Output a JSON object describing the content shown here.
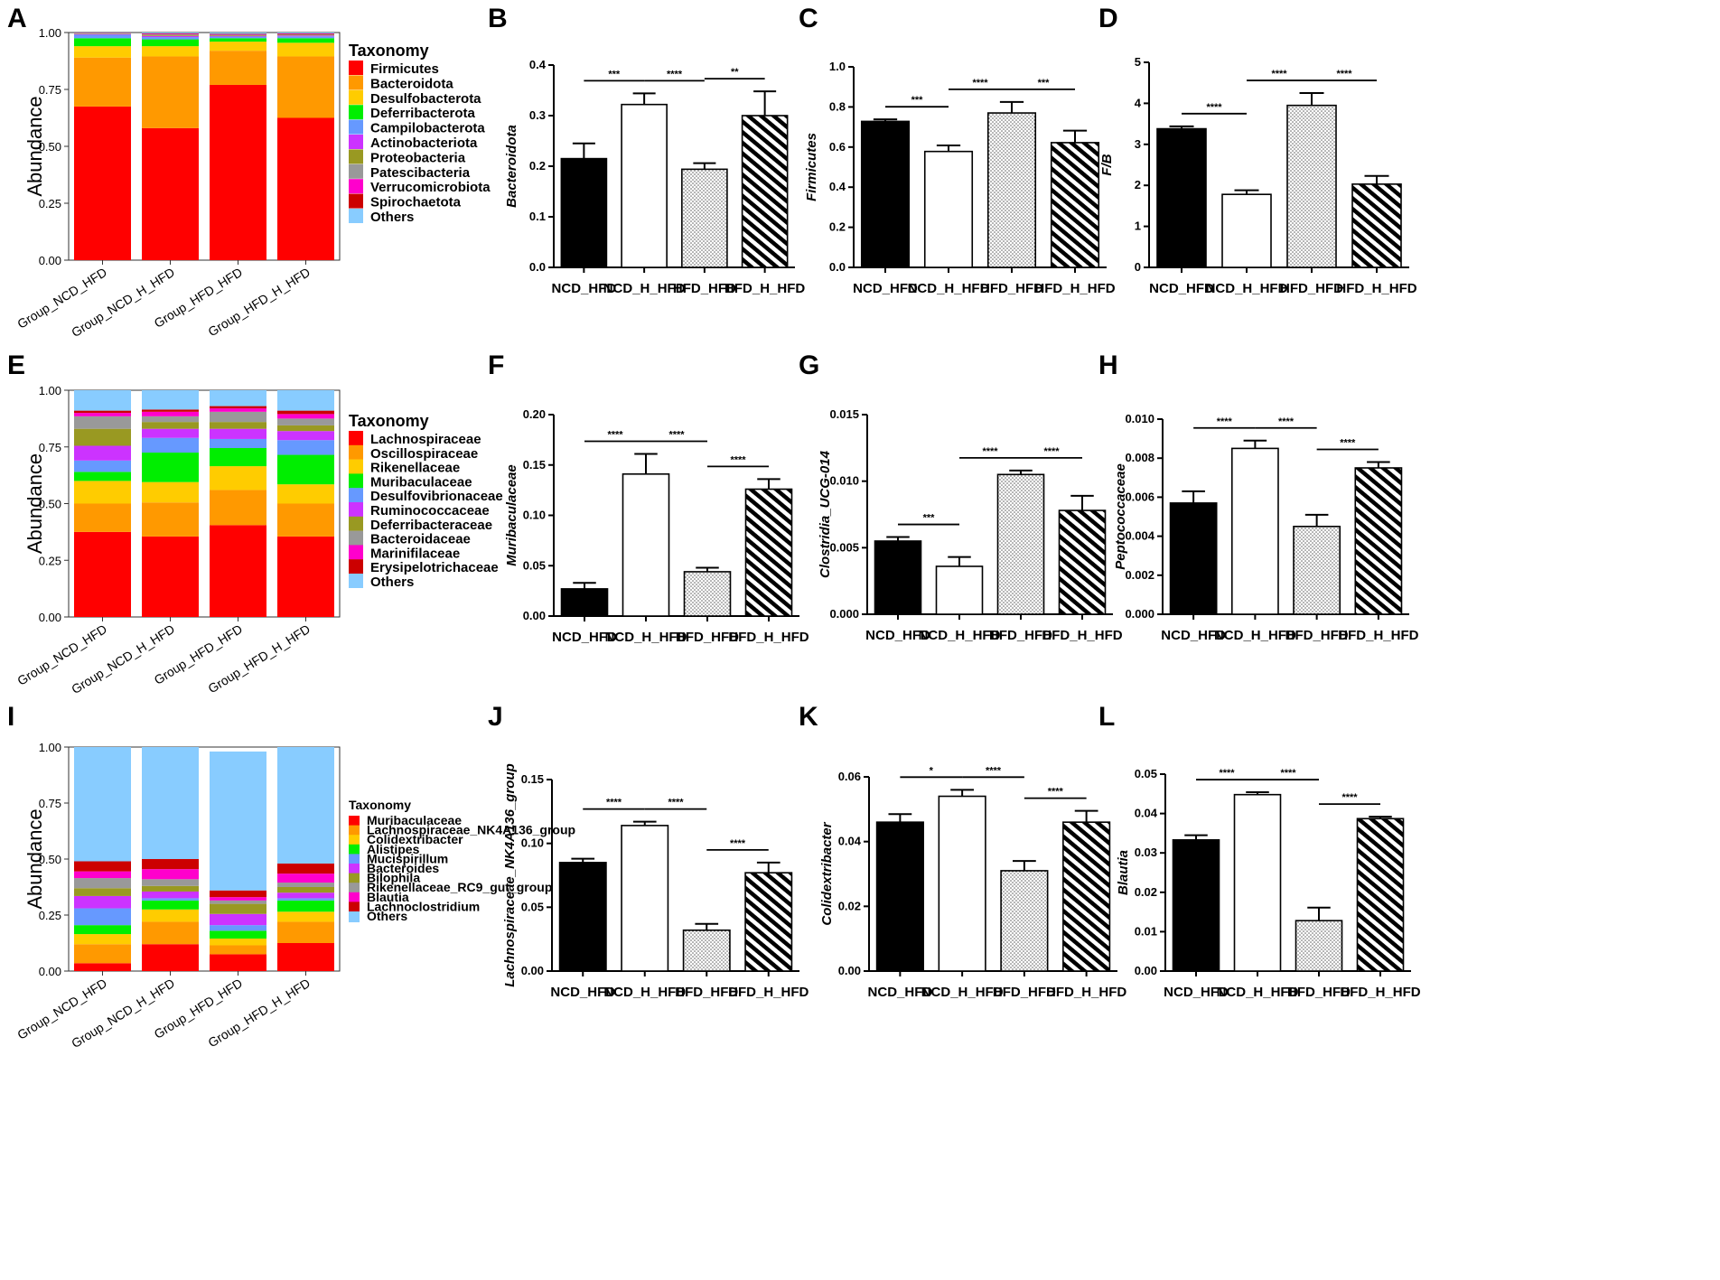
{
  "chart_data": [
    {
      "panel": "A",
      "type": "stacked_bar",
      "ylabel": "Abundance",
      "ylim": [
        0,
        1
      ],
      "yticks": [
        "0.00",
        "0.25",
        "0.50",
        "0.75",
        "1.00"
      ],
      "categories": [
        "Group_NCD_HFD",
        "Group_NCD_H_HFD",
        "Group_HFD_HFD",
        "Group_HFD_H_HFD"
      ],
      "legend_title": "Taxonomy",
      "series": [
        {
          "name": "Firmicutes",
          "color": "#ff0000",
          "values": [
            0.675,
            0.58,
            0.77,
            0.625
          ]
        },
        {
          "name": "Bacteroidota",
          "color": "#ff9900",
          "values": [
            0.215,
            0.315,
            0.15,
            0.27
          ]
        },
        {
          "name": "Desulfobacterota",
          "color": "#ffcc00",
          "values": [
            0.05,
            0.045,
            0.04,
            0.06
          ]
        },
        {
          "name": "Deferribacterota",
          "color": "#00ee00",
          "values": [
            0.035,
            0.03,
            0.015,
            0.02
          ]
        },
        {
          "name": "Campilobacterota",
          "color": "#6699ff",
          "values": [
            0.015,
            0.01,
            0.007,
            0.008
          ]
        },
        {
          "name": "Actinobacteriota",
          "color": "#cc33ff",
          "values": [
            0.003,
            0.005,
            0.003,
            0.004
          ]
        },
        {
          "name": "Proteobacteria",
          "color": "#999922",
          "values": [
            0.002,
            0.004,
            0.003,
            0.003
          ]
        },
        {
          "name": "Patescibacteria",
          "color": "#999999",
          "values": [
            0.002,
            0.003,
            0.002,
            0.002
          ]
        },
        {
          "name": "Verrucomicrobiota",
          "color": "#ff00cc",
          "values": [
            0.001,
            0.002,
            0.002,
            0.002
          ]
        },
        {
          "name": "Spirochaetota",
          "color": "#cc0000",
          "values": [
            0.001,
            0.002,
            0.002,
            0.002
          ]
        },
        {
          "name": "Others",
          "color": "#88ccff",
          "values": [
            0.001,
            0.004,
            0.006,
            0.004
          ]
        }
      ]
    },
    {
      "panel": "B",
      "type": "bar",
      "ylabel": "Bacteroidota",
      "ylim": [
        0,
        0.4
      ],
      "yticks": [
        "0.0",
        "0.1",
        "0.2",
        "0.3",
        "0.4"
      ],
      "categories": [
        "NCD_HFD",
        "NCD_H_HFD",
        "HFD_HFD",
        "HFD_H_HFD"
      ],
      "values": [
        0.215,
        0.322,
        0.194,
        0.3
      ],
      "errors": [
        0.03,
        0.022,
        0.012,
        0.048
      ],
      "significance": [
        {
          "from": 0,
          "to": 1,
          "label": "***"
        },
        {
          "from": 1,
          "to": 2,
          "label": "****"
        },
        {
          "from": 2,
          "to": 3,
          "label": "**"
        }
      ]
    },
    {
      "panel": "C",
      "type": "bar",
      "ylabel": "Firmicutes",
      "ylim": [
        0,
        1.0
      ],
      "yticks": [
        "0.0",
        "0.2",
        "0.4",
        "0.6",
        "0.8",
        "1.0"
      ],
      "categories": [
        "NCD_HFD",
        "NCD_H_HFD",
        "HFD_HFD",
        "HFD_H_HFD"
      ],
      "values": [
        0.728,
        0.578,
        0.77,
        0.622
      ],
      "errors": [
        0.01,
        0.03,
        0.055,
        0.06
      ],
      "significance": [
        {
          "from": 0,
          "to": 1,
          "label": "***"
        },
        {
          "from": 1,
          "to": 2,
          "label": "****"
        },
        {
          "from": 2,
          "to": 3,
          "label": "***"
        }
      ]
    },
    {
      "panel": "D",
      "type": "bar",
      "ylabel": "F/B",
      "ylim": [
        0,
        5
      ],
      "yticks": [
        "0",
        "1",
        "2",
        "3",
        "4",
        "5"
      ],
      "categories": [
        "NCD_HFD",
        "NCD_H_HFD",
        "HFD_HFD",
        "HFD_H_HFD"
      ],
      "values": [
        3.38,
        1.78,
        3.95,
        2.03
      ],
      "errors": [
        0.06,
        0.1,
        0.3,
        0.2
      ],
      "significance": [
        {
          "from": 0,
          "to": 1,
          "label": "****"
        },
        {
          "from": 1,
          "to": 2,
          "label": "****"
        },
        {
          "from": 2,
          "to": 3,
          "label": "****"
        }
      ]
    },
    {
      "panel": "E",
      "type": "stacked_bar",
      "ylabel": "Abundance",
      "ylim": [
        0,
        1
      ],
      "yticks": [
        "0.00",
        "0.25",
        "0.50",
        "0.75",
        "1.00"
      ],
      "categories": [
        "Group_NCD_HFD",
        "Group_NCD_H_HFD",
        "Group_HFD_HFD",
        "Group_HFD_H_HFD"
      ],
      "legend_title": "Taxonomy",
      "series": [
        {
          "name": "Lachnospiraceae",
          "color": "#ff0000",
          "values": [
            0.375,
            0.355,
            0.405,
            0.355
          ]
        },
        {
          "name": "Oscillospiraceae",
          "color": "#ff9900",
          "values": [
            0.125,
            0.15,
            0.155,
            0.145
          ]
        },
        {
          "name": "Rikenellaceae",
          "color": "#ffcc00",
          "values": [
            0.1,
            0.09,
            0.105,
            0.085
          ]
        },
        {
          "name": "Muribaculaceae",
          "color": "#00ee00",
          "values": [
            0.04,
            0.13,
            0.08,
            0.13
          ]
        },
        {
          "name": "Desulfovibrionaceae",
          "color": "#6699ff",
          "values": [
            0.05,
            0.065,
            0.04,
            0.065
          ]
        },
        {
          "name": "Ruminococcaceae",
          "color": "#cc33ff",
          "values": [
            0.065,
            0.04,
            0.045,
            0.04
          ]
        },
        {
          "name": "Deferribacteraceae",
          "color": "#999922",
          "values": [
            0.075,
            0.03,
            0.03,
            0.025
          ]
        },
        {
          "name": "Bacteroidaceae",
          "color": "#999999",
          "values": [
            0.055,
            0.025,
            0.045,
            0.03
          ]
        },
        {
          "name": "Marinifilaceae",
          "color": "#ff00cc",
          "values": [
            0.015,
            0.02,
            0.015,
            0.02
          ]
        },
        {
          "name": "Erysipelotrichaceae",
          "color": "#cc0000",
          "values": [
            0.01,
            0.01,
            0.01,
            0.015
          ]
        },
        {
          "name": "Others",
          "color": "#88ccff",
          "values": [
            0.09,
            0.085,
            0.07,
            0.09
          ]
        }
      ]
    },
    {
      "panel": "F",
      "type": "bar",
      "ylabel": "Muribaculaceae",
      "ylim": [
        0,
        0.2
      ],
      "yticks": [
        "0.00",
        "0.05",
        "0.10",
        "0.15",
        "0.20"
      ],
      "categories": [
        "NCD_HFD",
        "NCD_H_HFD",
        "HFD_HFD",
        "HFD_H_HFD"
      ],
      "values": [
        0.027,
        0.141,
        0.044,
        0.126
      ],
      "errors": [
        0.006,
        0.02,
        0.004,
        0.01
      ],
      "significance": [
        {
          "from": 0,
          "to": 1,
          "label": "****"
        },
        {
          "from": 1,
          "to": 2,
          "label": "****"
        },
        {
          "from": 2,
          "to": 3,
          "label": "****"
        }
      ]
    },
    {
      "panel": "G",
      "type": "bar",
      "ylabel": "Clostridia_UCG-014",
      "ylim": [
        0,
        0.015
      ],
      "yticks": [
        "0.000",
        "0.005",
        "0.010",
        "0.015"
      ],
      "categories": [
        "NCD_HFD",
        "NCD_H_HFD",
        "HFD_HFD",
        "HFD_H_HFD"
      ],
      "values": [
        0.0055,
        0.0036,
        0.0105,
        0.0078
      ],
      "errors": [
        0.0003,
        0.0007,
        0.0003,
        0.0011
      ],
      "significance": [
        {
          "from": 0,
          "to": 1,
          "label": "***"
        },
        {
          "from": 2,
          "to": 3,
          "label": "****"
        },
        {
          "from": 1,
          "to": 2,
          "label": "****"
        }
      ]
    },
    {
      "panel": "H",
      "type": "bar",
      "ylabel": "Peptococcaceae",
      "ylim": [
        0,
        0.01
      ],
      "yticks": [
        "0.000",
        "0.002",
        "0.004",
        "0.006",
        "0.008",
        "0.010"
      ],
      "categories": [
        "NCD_HFD",
        "NCD_H_HFD",
        "HFD_HFD",
        "HFD_H_HFD"
      ],
      "values": [
        0.0057,
        0.0085,
        0.0045,
        0.0075
      ],
      "errors": [
        0.0006,
        0.0004,
        0.0006,
        0.0003
      ],
      "significance": [
        {
          "from": 0,
          "to": 1,
          "label": "****"
        },
        {
          "from": 1,
          "to": 2,
          "label": "****"
        },
        {
          "from": 2,
          "to": 3,
          "label": "****"
        }
      ]
    },
    {
      "panel": "I",
      "type": "stacked_bar",
      "ylabel": "Abundance",
      "ylim": [
        0,
        1
      ],
      "yticks": [
        "0.00",
        "0.25",
        "0.50",
        "0.75",
        "1.00"
      ],
      "categories": [
        "Group_NCD_HFD",
        "Group_NCD_H_HFD",
        "Group_HFD_HFD",
        "Group_HFD_H_HFD"
      ],
      "legend_title": "Taxonomy",
      "series": [
        {
          "name": "Muribaculaceae",
          "color": "#ff0000",
          "values": [
            0.035,
            0.12,
            0.075,
            0.125
          ]
        },
        {
          "name": "Lachnospiraceae_NK4A136_group",
          "color": "#ff9900",
          "values": [
            0.085,
            0.1,
            0.04,
            0.095
          ]
        },
        {
          "name": "Colidextribacter",
          "color": "#ffcc00",
          "values": [
            0.045,
            0.055,
            0.03,
            0.045
          ]
        },
        {
          "name": "Alistipes",
          "color": "#00ee00",
          "values": [
            0.04,
            0.04,
            0.035,
            0.05
          ]
        },
        {
          "name": "Mucispirillum",
          "color": "#6699ff",
          "values": [
            0.075,
            0.01,
            0.025,
            0.01
          ]
        },
        {
          "name": "Bacteroides",
          "color": "#cc33ff",
          "values": [
            0.055,
            0.03,
            0.05,
            0.025
          ]
        },
        {
          "name": "Bilophila",
          "color": "#999922",
          "values": [
            0.035,
            0.025,
            0.045,
            0.025
          ]
        },
        {
          "name": "Rikenellaceae_RC9_gut_group",
          "color": "#999999",
          "values": [
            0.045,
            0.03,
            0.015,
            0.02
          ]
        },
        {
          "name": "Blautia",
          "color": "#ff00cc",
          "values": [
            0.03,
            0.045,
            0.015,
            0.04
          ]
        },
        {
          "name": "Lachnoclostridium",
          "color": "#cc0000",
          "values": [
            0.045,
            0.045,
            0.03,
            0.045
          ]
        },
        {
          "name": "Others",
          "color": "#88ccff",
          "values": [
            0.51,
            0.5,
            0.62,
            0.52
          ]
        }
      ]
    },
    {
      "panel": "J",
      "type": "bar",
      "ylabel": "Lachnospiraceae_NK4A136_group",
      "ylim": [
        0,
        0.15
      ],
      "yticks": [
        "0.00",
        "0.05",
        "0.10",
        "0.15"
      ],
      "categories": [
        "NCD_HFD",
        "NCD_H_HFD",
        "HFD_HFD",
        "HFD_H_HFD"
      ],
      "values": [
        0.085,
        0.114,
        0.032,
        0.077
      ],
      "errors": [
        0.003,
        0.003,
        0.005,
        0.008
      ],
      "significance": [
        {
          "from": 0,
          "to": 1,
          "label": "****"
        },
        {
          "from": 1,
          "to": 2,
          "label": "****"
        },
        {
          "from": 2,
          "to": 3,
          "label": "****"
        }
      ]
    },
    {
      "panel": "K",
      "type": "bar",
      "ylabel": "Colidextribacter",
      "ylim": [
        0,
        0.06
      ],
      "yticks": [
        "0.00",
        "0.02",
        "0.04",
        "0.06"
      ],
      "categories": [
        "NCD_HFD",
        "NCD_H_HFD",
        "HFD_HFD",
        "HFD_H_HFD"
      ],
      "values": [
        0.046,
        0.054,
        0.031,
        0.046
      ],
      "errors": [
        0.0025,
        0.002,
        0.003,
        0.0035
      ],
      "significance": [
        {
          "from": 0,
          "to": 1,
          "label": "*"
        },
        {
          "from": 1,
          "to": 2,
          "label": "****"
        },
        {
          "from": 2,
          "to": 3,
          "label": "****"
        }
      ]
    },
    {
      "panel": "L",
      "type": "bar",
      "ylabel": "Blautia",
      "ylim": [
        0,
        0.05
      ],
      "yticks": [
        "0.00",
        "0.01",
        "0.02",
        "0.03",
        "0.04",
        "0.05"
      ],
      "categories": [
        "NCD_HFD",
        "NCD_H_HFD",
        "HFD_HFD",
        "HFD_H_HFD"
      ],
      "values": [
        0.0333,
        0.0448,
        0.0128,
        0.0387
      ],
      "errors": [
        0.0012,
        0.0006,
        0.0033,
        0.0005
      ],
      "significance": [
        {
          "from": 0,
          "to": 1,
          "label": "****"
        },
        {
          "from": 1,
          "to": 2,
          "label": "****"
        },
        {
          "from": 2,
          "to": 3,
          "label": "****"
        }
      ]
    }
  ]
}
